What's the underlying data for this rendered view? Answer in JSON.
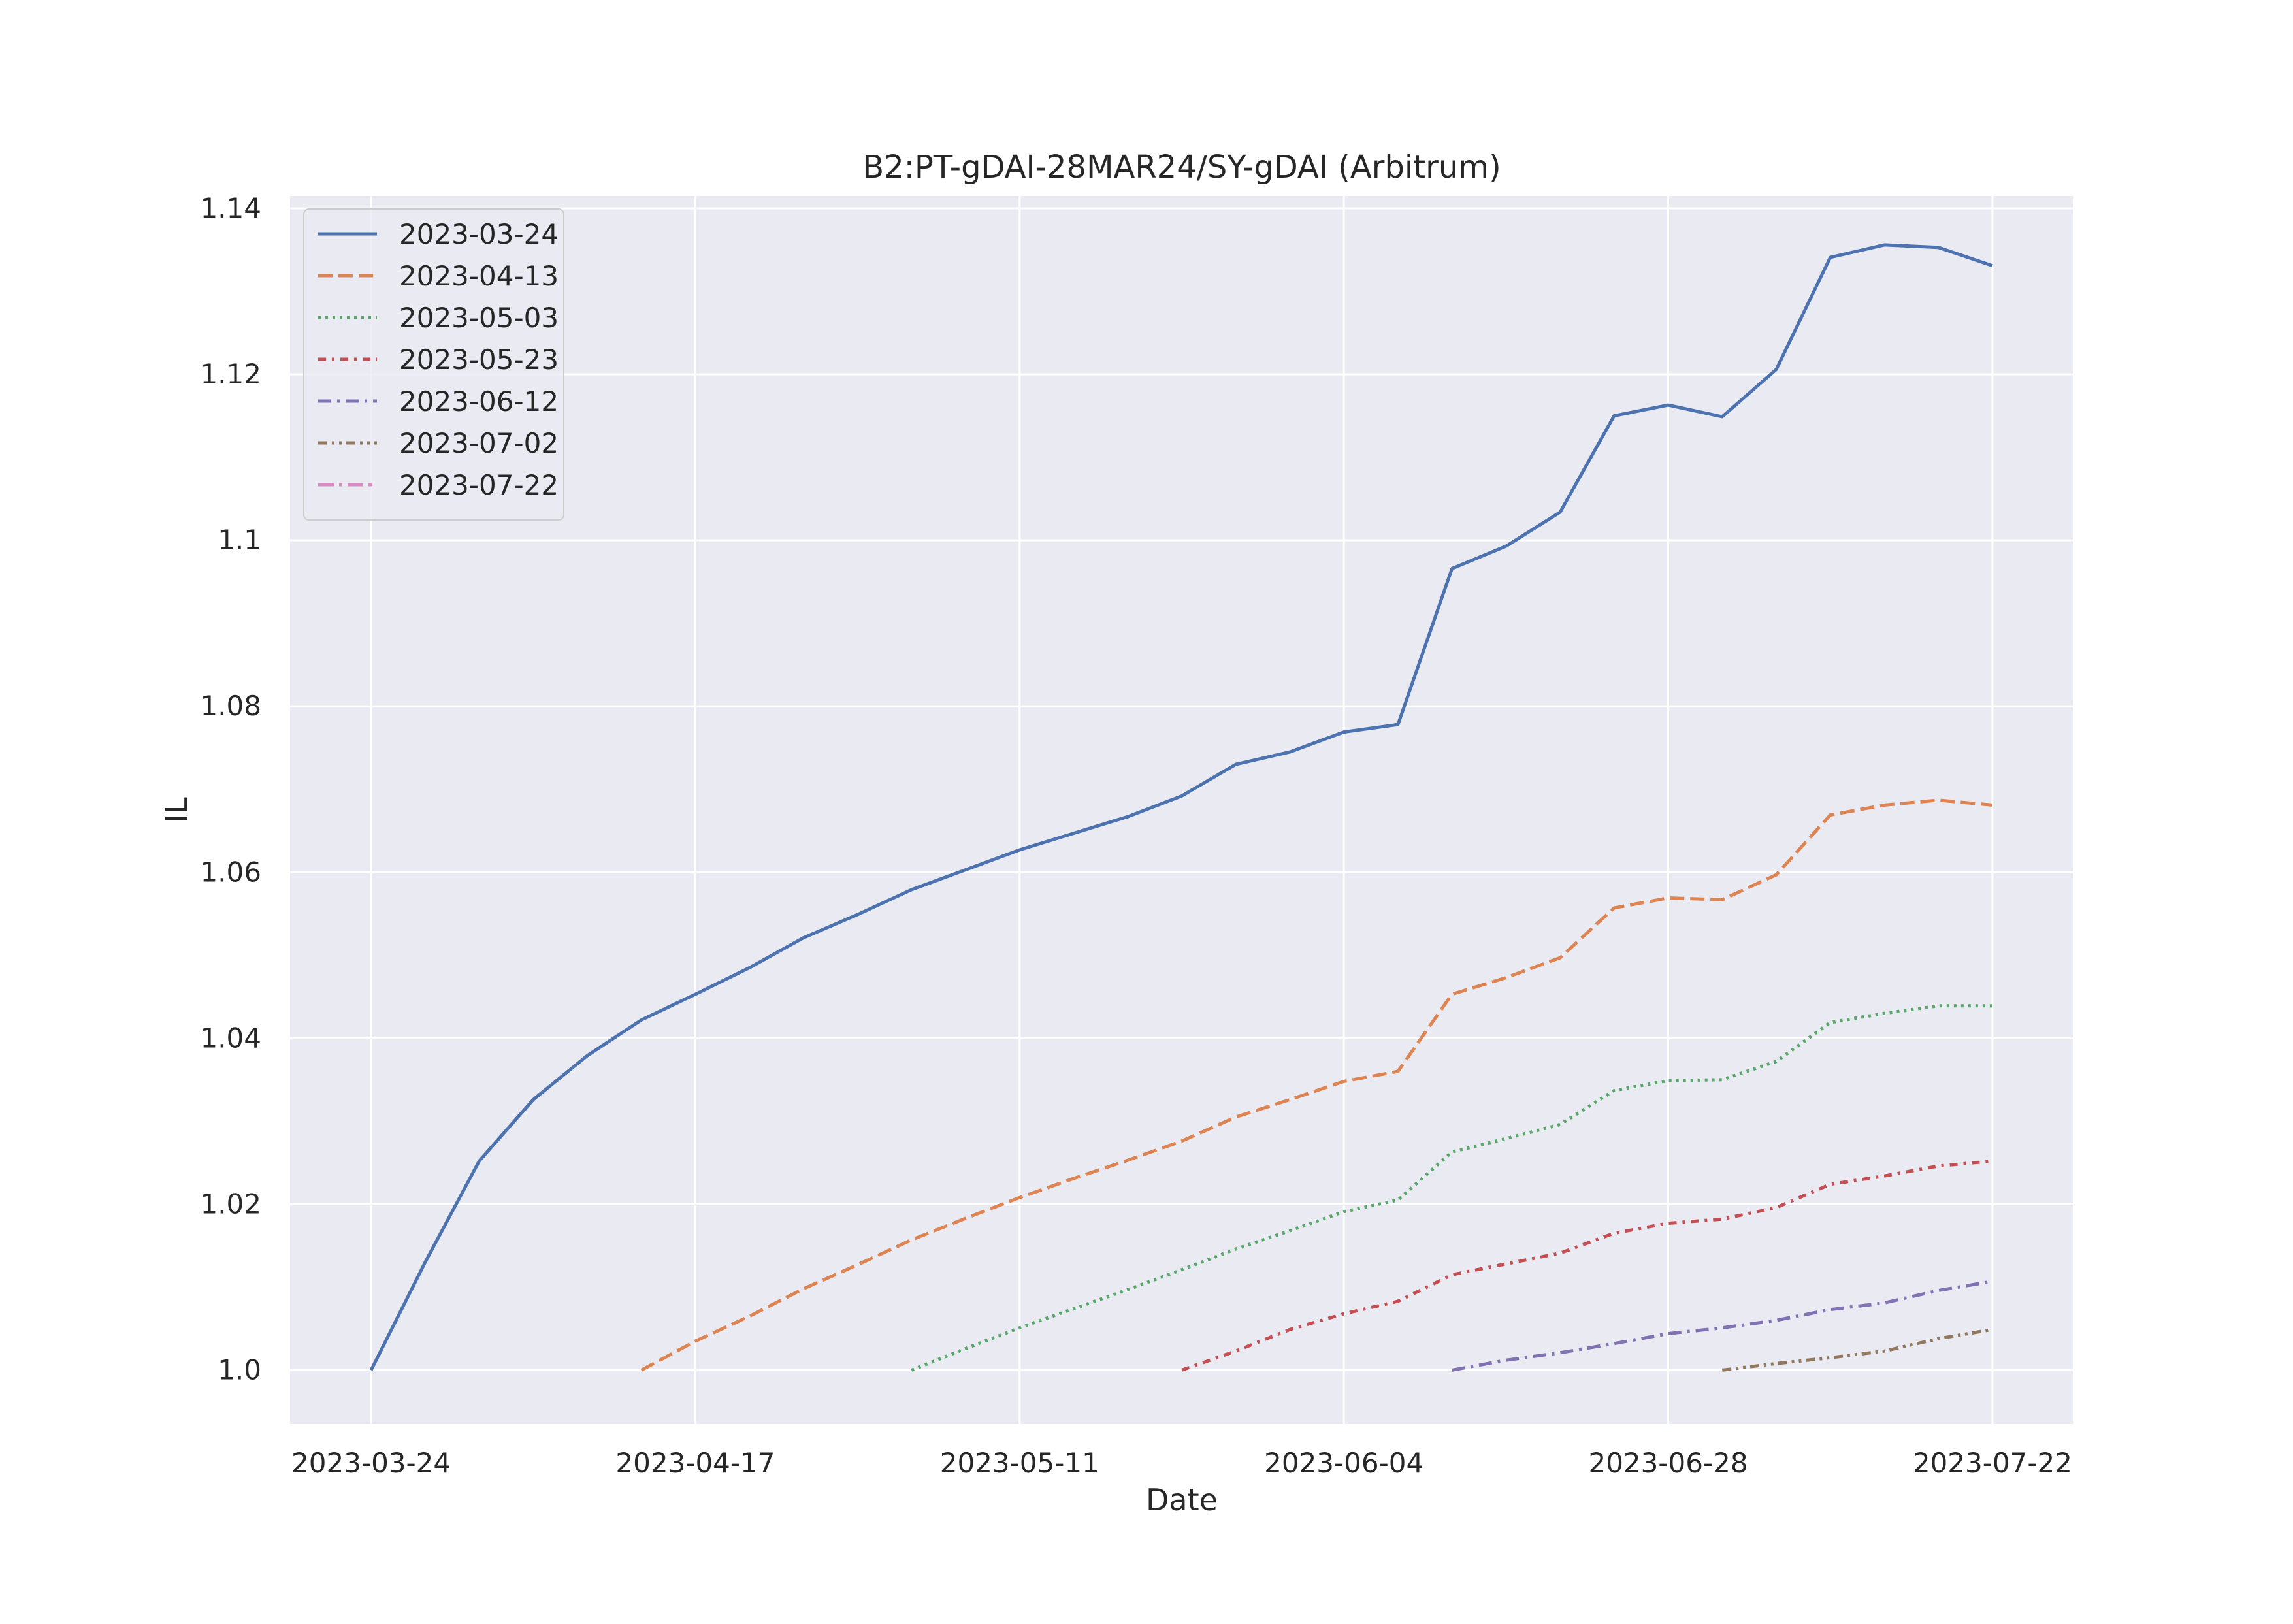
{
  "chart_data": {
    "type": "line",
    "title": "B2:PT-gDAI-28MAR24/SY-gDAI (Arbitrum)",
    "xlabel": "Date",
    "ylabel": "IL",
    "x_axis_type": "date",
    "xlim": [
      "2023-03-18",
      "2023-07-28"
    ],
    "ylim": [
      0.9935,
      1.1415
    ],
    "x_ticks": [
      "2023-03-24",
      "2023-04-17",
      "2023-05-11",
      "2023-06-04",
      "2023-06-28",
      "2023-07-22"
    ],
    "y_ticks": [
      1.0,
      1.02,
      1.04,
      1.06,
      1.08,
      1.1,
      1.12,
      1.14
    ],
    "y_tick_labels": [
      "1.0",
      "1.02",
      "1.04",
      "1.06",
      "1.08",
      "1.1",
      "1.12",
      "1.14"
    ],
    "grid": true,
    "legend_position": "top-left",
    "background": "#EAEAF2",
    "series": [
      {
        "name": "2023-03-24",
        "color": "#4C72B0",
        "dash": "solid",
        "x": [
          "2023-03-24",
          "2023-03-28",
          "2023-04-01",
          "2023-04-05",
          "2023-04-09",
          "2023-04-13",
          "2023-04-17",
          "2023-04-21",
          "2023-04-25",
          "2023-04-29",
          "2023-05-03",
          "2023-05-07",
          "2023-05-11",
          "2023-05-15",
          "2023-05-19",
          "2023-05-23",
          "2023-05-27",
          "2023-05-31",
          "2023-06-04",
          "2023-06-08",
          "2023-06-12",
          "2023-06-16",
          "2023-06-20",
          "2023-06-24",
          "2023-06-28",
          "2023-07-02",
          "2023-07-06",
          "2023-07-10",
          "2023-07-14",
          "2023-07-18",
          "2023-07-22"
        ],
        "y": [
          1.0,
          1.013,
          1.0252,
          1.0326,
          1.0379,
          1.0422,
          1.0453,
          1.0485,
          1.0521,
          1.0549,
          1.0579,
          1.0603,
          1.0627,
          1.0647,
          1.0667,
          1.0692,
          1.073,
          1.0745,
          1.0769,
          1.0778,
          1.0966,
          1.0993,
          1.1034,
          1.115,
          1.1163,
          1.1149,
          1.1206,
          1.1341,
          1.1356,
          1.1353,
          1.1331
        ]
      },
      {
        "name": "2023-04-13",
        "color": "#DD8452",
        "dash": "dashed",
        "x": [
          "2023-04-13",
          "2023-04-17",
          "2023-04-21",
          "2023-04-25",
          "2023-04-29",
          "2023-05-03",
          "2023-05-07",
          "2023-05-11",
          "2023-05-15",
          "2023-05-19",
          "2023-05-23",
          "2023-05-27",
          "2023-05-31",
          "2023-06-04",
          "2023-06-08",
          "2023-06-12",
          "2023-06-16",
          "2023-06-20",
          "2023-06-24",
          "2023-06-28",
          "2023-07-02",
          "2023-07-06",
          "2023-07-10",
          "2023-07-14",
          "2023-07-18",
          "2023-07-22"
        ],
        "y": [
          1.0,
          1.0035,
          1.0065,
          1.0098,
          1.0127,
          1.0157,
          1.0183,
          1.0208,
          1.0231,
          1.0253,
          1.0276,
          1.0305,
          1.0326,
          1.0348,
          1.036,
          1.0453,
          1.0473,
          1.0497,
          1.0557,
          1.0569,
          1.0567,
          1.0597,
          1.0669,
          1.0681,
          1.0687,
          1.0681
        ]
      },
      {
        "name": "2023-05-03",
        "color": "#55A868",
        "dash": "dotted",
        "x": [
          "2023-05-03",
          "2023-05-07",
          "2023-05-11",
          "2023-05-15",
          "2023-05-19",
          "2023-05-23",
          "2023-05-27",
          "2023-05-31",
          "2023-06-04",
          "2023-06-08",
          "2023-06-12",
          "2023-06-16",
          "2023-06-20",
          "2023-06-24",
          "2023-06-28",
          "2023-07-02",
          "2023-07-06",
          "2023-07-10",
          "2023-07-14",
          "2023-07-18",
          "2023-07-22"
        ],
        "y": [
          1.0,
          1.0026,
          1.0051,
          1.0074,
          1.0097,
          1.0121,
          1.0146,
          1.0168,
          1.0191,
          1.0205,
          1.0263,
          1.0279,
          1.0296,
          1.0337,
          1.0349,
          1.035,
          1.0372,
          1.0419,
          1.043,
          1.0439,
          1.0439
        ]
      },
      {
        "name": "2023-05-23",
        "color": "#C44E52",
        "dash": "dashdot-dense",
        "x": [
          "2023-05-23",
          "2023-05-27",
          "2023-05-31",
          "2023-06-04",
          "2023-06-08",
          "2023-06-12",
          "2023-06-16",
          "2023-06-20",
          "2023-06-24",
          "2023-06-28",
          "2023-07-02",
          "2023-07-06",
          "2023-07-10",
          "2023-07-14",
          "2023-07-18",
          "2023-07-22"
        ],
        "y": [
          1.0,
          1.0023,
          1.0049,
          1.0068,
          1.0083,
          1.0115,
          1.0128,
          1.0141,
          1.0165,
          1.0177,
          1.0182,
          1.0196,
          1.0224,
          1.0234,
          1.0246,
          1.0252
        ]
      },
      {
        "name": "2023-06-12",
        "color": "#8172B3",
        "dash": "dashdot",
        "x": [
          "2023-06-12",
          "2023-06-16",
          "2023-06-20",
          "2023-06-24",
          "2023-06-28",
          "2023-07-02",
          "2023-07-06",
          "2023-07-10",
          "2023-07-14",
          "2023-07-18",
          "2023-07-22"
        ],
        "y": [
          1.0,
          1.0012,
          1.0021,
          1.0032,
          1.0044,
          1.0051,
          1.006,
          1.0073,
          1.0081,
          1.0096,
          1.0107
        ]
      },
      {
        "name": "2023-07-02",
        "color": "#937860",
        "dash": "dashdotdot",
        "x": [
          "2023-07-02",
          "2023-07-06",
          "2023-07-10",
          "2023-07-14",
          "2023-07-18",
          "2023-07-22"
        ],
        "y": [
          1.0,
          1.0008,
          1.0015,
          1.0023,
          1.0038,
          1.0049
        ]
      },
      {
        "name": "2023-07-22",
        "color": "#DA8BC3",
        "dash": "dashdot-long",
        "x": [],
        "y": []
      }
    ]
  }
}
